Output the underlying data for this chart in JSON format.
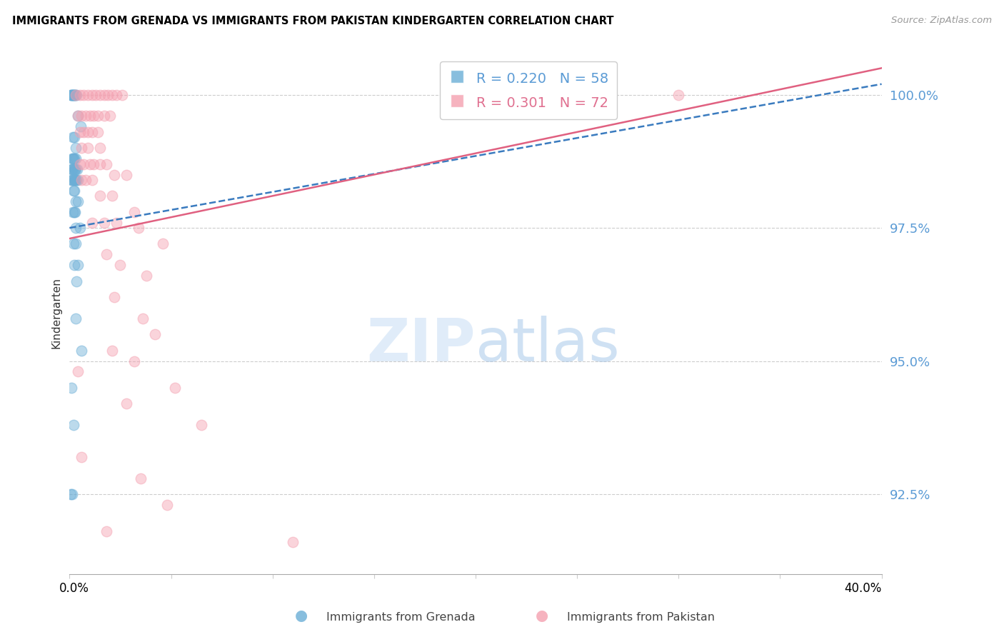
{
  "title": "IMMIGRANTS FROM GRENADA VS IMMIGRANTS FROM PAKISTAN KINDERGARTEN CORRELATION CHART",
  "source": "Source: ZipAtlas.com",
  "ylabel": "Kindergarten",
  "x_min": 0.0,
  "x_max": 40.0,
  "y_min": 91.0,
  "y_max": 100.8,
  "y_ticks": [
    92.5,
    95.0,
    97.5,
    100.0
  ],
  "y_tick_labels": [
    "92.5%",
    "95.0%",
    "97.5%",
    "100.0%"
  ],
  "grenada_color": "#6baed6",
  "pakistan_color": "#f4a0b0",
  "grenada_line_color": "#3a7bbf",
  "pakistan_line_color": "#e06080",
  "grenada_R": 0.22,
  "grenada_N": 58,
  "pakistan_R": 0.301,
  "pakistan_N": 72,
  "grenada_scatter": [
    [
      0.05,
      100.0
    ],
    [
      0.08,
      100.0
    ],
    [
      0.1,
      100.0
    ],
    [
      0.12,
      100.0
    ],
    [
      0.15,
      100.0
    ],
    [
      0.18,
      100.0
    ],
    [
      0.2,
      100.0
    ],
    [
      0.22,
      100.0
    ],
    [
      0.25,
      100.0
    ],
    [
      0.28,
      100.0
    ],
    [
      0.3,
      100.0
    ],
    [
      0.35,
      100.0
    ],
    [
      0.4,
      99.6
    ],
    [
      0.55,
      99.4
    ],
    [
      0.18,
      99.2
    ],
    [
      0.22,
      99.2
    ],
    [
      0.3,
      99.0
    ],
    [
      0.12,
      98.8
    ],
    [
      0.16,
      98.8
    ],
    [
      0.2,
      98.8
    ],
    [
      0.25,
      98.8
    ],
    [
      0.3,
      98.8
    ],
    [
      0.1,
      98.6
    ],
    [
      0.14,
      98.6
    ],
    [
      0.18,
      98.6
    ],
    [
      0.22,
      98.6
    ],
    [
      0.26,
      98.6
    ],
    [
      0.3,
      98.6
    ],
    [
      0.36,
      98.6
    ],
    [
      0.1,
      98.4
    ],
    [
      0.14,
      98.4
    ],
    [
      0.18,
      98.4
    ],
    [
      0.22,
      98.4
    ],
    [
      0.26,
      98.4
    ],
    [
      0.3,
      98.4
    ],
    [
      0.34,
      98.4
    ],
    [
      0.4,
      98.4
    ],
    [
      0.2,
      98.2
    ],
    [
      0.25,
      98.2
    ],
    [
      0.3,
      98.0
    ],
    [
      0.4,
      98.0
    ],
    [
      0.18,
      97.8
    ],
    [
      0.22,
      97.8
    ],
    [
      0.28,
      97.8
    ],
    [
      0.3,
      97.5
    ],
    [
      0.5,
      97.5
    ],
    [
      0.2,
      97.2
    ],
    [
      0.3,
      97.2
    ],
    [
      0.25,
      96.8
    ],
    [
      0.4,
      96.8
    ],
    [
      0.35,
      96.5
    ],
    [
      0.3,
      95.8
    ],
    [
      0.6,
      95.2
    ],
    [
      0.08,
      94.5
    ],
    [
      0.2,
      93.8
    ],
    [
      0.06,
      92.5
    ],
    [
      0.12,
      92.5
    ]
  ],
  "pakistan_scatter": [
    [
      0.3,
      100.0
    ],
    [
      0.5,
      100.0
    ],
    [
      0.7,
      100.0
    ],
    [
      0.9,
      100.0
    ],
    [
      1.1,
      100.0
    ],
    [
      1.3,
      100.0
    ],
    [
      1.5,
      100.0
    ],
    [
      1.7,
      100.0
    ],
    [
      1.9,
      100.0
    ],
    [
      2.1,
      100.0
    ],
    [
      2.3,
      100.0
    ],
    [
      2.6,
      100.0
    ],
    [
      30.0,
      100.0
    ],
    [
      0.4,
      99.6
    ],
    [
      0.6,
      99.6
    ],
    [
      0.8,
      99.6
    ],
    [
      1.0,
      99.6
    ],
    [
      1.2,
      99.6
    ],
    [
      1.4,
      99.6
    ],
    [
      1.7,
      99.6
    ],
    [
      2.0,
      99.6
    ],
    [
      0.5,
      99.3
    ],
    [
      0.7,
      99.3
    ],
    [
      0.9,
      99.3
    ],
    [
      1.1,
      99.3
    ],
    [
      1.4,
      99.3
    ],
    [
      0.6,
      99.0
    ],
    [
      0.9,
      99.0
    ],
    [
      1.5,
      99.0
    ],
    [
      0.5,
      98.7
    ],
    [
      0.7,
      98.7
    ],
    [
      1.0,
      98.7
    ],
    [
      1.2,
      98.7
    ],
    [
      1.5,
      98.7
    ],
    [
      1.8,
      98.7
    ],
    [
      2.2,
      98.5
    ],
    [
      2.8,
      98.5
    ],
    [
      0.6,
      98.4
    ],
    [
      0.8,
      98.4
    ],
    [
      1.1,
      98.4
    ],
    [
      1.5,
      98.1
    ],
    [
      2.1,
      98.1
    ],
    [
      3.2,
      97.8
    ],
    [
      1.1,
      97.6
    ],
    [
      1.7,
      97.6
    ],
    [
      2.3,
      97.6
    ],
    [
      3.4,
      97.5
    ],
    [
      4.6,
      97.2
    ],
    [
      1.8,
      97.0
    ],
    [
      2.5,
      96.8
    ],
    [
      3.8,
      96.6
    ],
    [
      2.2,
      96.2
    ],
    [
      3.6,
      95.8
    ],
    [
      4.2,
      95.5
    ],
    [
      2.1,
      95.2
    ],
    [
      3.2,
      95.0
    ],
    [
      0.4,
      94.8
    ],
    [
      5.2,
      94.5
    ],
    [
      2.8,
      94.2
    ],
    [
      6.5,
      93.8
    ],
    [
      0.6,
      93.2
    ],
    [
      3.5,
      92.8
    ],
    [
      4.8,
      92.3
    ],
    [
      1.8,
      91.8
    ],
    [
      11.0,
      91.6
    ]
  ]
}
